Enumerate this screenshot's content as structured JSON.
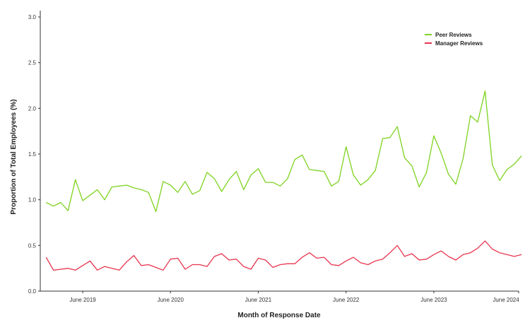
{
  "chart_data": {
    "type": "line",
    "title": "",
    "xlabel": "Month of Response Date",
    "ylabel": "Proportion of Total Employees (%)",
    "ylim": [
      0,
      3.0
    ],
    "yticks": [
      0.0,
      0.5,
      1.0,
      1.5,
      2.0,
      2.5,
      3.0
    ],
    "ytick_labels": [
      "0.0",
      "0.5",
      "1.0",
      "1.5",
      "2.0",
      "2.5",
      "3.0"
    ],
    "xlim": [
      -0.8,
      64.6
    ],
    "x_ticks": [
      {
        "x": 5,
        "label": "June 2019"
      },
      {
        "x": 17,
        "label": "June 2020"
      },
      {
        "x": 29,
        "label": "June 2021"
      },
      {
        "x": 41,
        "label": "June 2022"
      },
      {
        "x": 53,
        "label": "June 2023"
      },
      {
        "x": 65,
        "label": "June 2024"
      }
    ],
    "grid": false,
    "legend_position": "top-right",
    "series": [
      {
        "name": "Peer Reviews",
        "color": "#7ed321",
        "values": [
          0.97,
          0.93,
          0.97,
          0.88,
          1.22,
          0.99,
          1.05,
          1.11,
          1.0,
          1.14,
          1.15,
          1.16,
          1.13,
          1.11,
          1.08,
          0.87,
          1.2,
          1.16,
          1.08,
          1.2,
          1.06,
          1.1,
          1.3,
          1.23,
          1.09,
          1.22,
          1.31,
          1.11,
          1.27,
          1.34,
          1.19,
          1.19,
          1.15,
          1.23,
          1.44,
          1.49,
          1.33,
          1.32,
          1.31,
          1.15,
          1.2,
          1.58,
          1.27,
          1.16,
          1.22,
          1.32,
          1.67,
          1.68,
          1.8,
          1.46,
          1.37,
          1.14,
          1.3,
          1.7,
          1.51,
          1.28,
          1.17,
          1.45,
          1.92,
          1.85,
          2.19,
          1.38,
          1.21,
          1.33,
          1.39,
          1.48
        ]
      },
      {
        "name": "Manager Reviews",
        "color": "#e8344e",
        "values": [
          0.37,
          0.23,
          0.24,
          0.25,
          0.23,
          0.28,
          0.33,
          0.23,
          0.27,
          0.25,
          0.23,
          0.32,
          0.39,
          0.28,
          0.29,
          0.26,
          0.23,
          0.35,
          0.36,
          0.24,
          0.29,
          0.29,
          0.27,
          0.38,
          0.41,
          0.34,
          0.35,
          0.27,
          0.24,
          0.36,
          0.34,
          0.26,
          0.29,
          0.3,
          0.3,
          0.37,
          0.42,
          0.36,
          0.37,
          0.29,
          0.28,
          0.33,
          0.37,
          0.31,
          0.29,
          0.33,
          0.35,
          0.42,
          0.5,
          0.38,
          0.41,
          0.34,
          0.35,
          0.4,
          0.44,
          0.38,
          0.34,
          0.4,
          0.42,
          0.47,
          0.55,
          0.46,
          0.42,
          0.4,
          0.38,
          0.4
        ]
      }
    ]
  }
}
